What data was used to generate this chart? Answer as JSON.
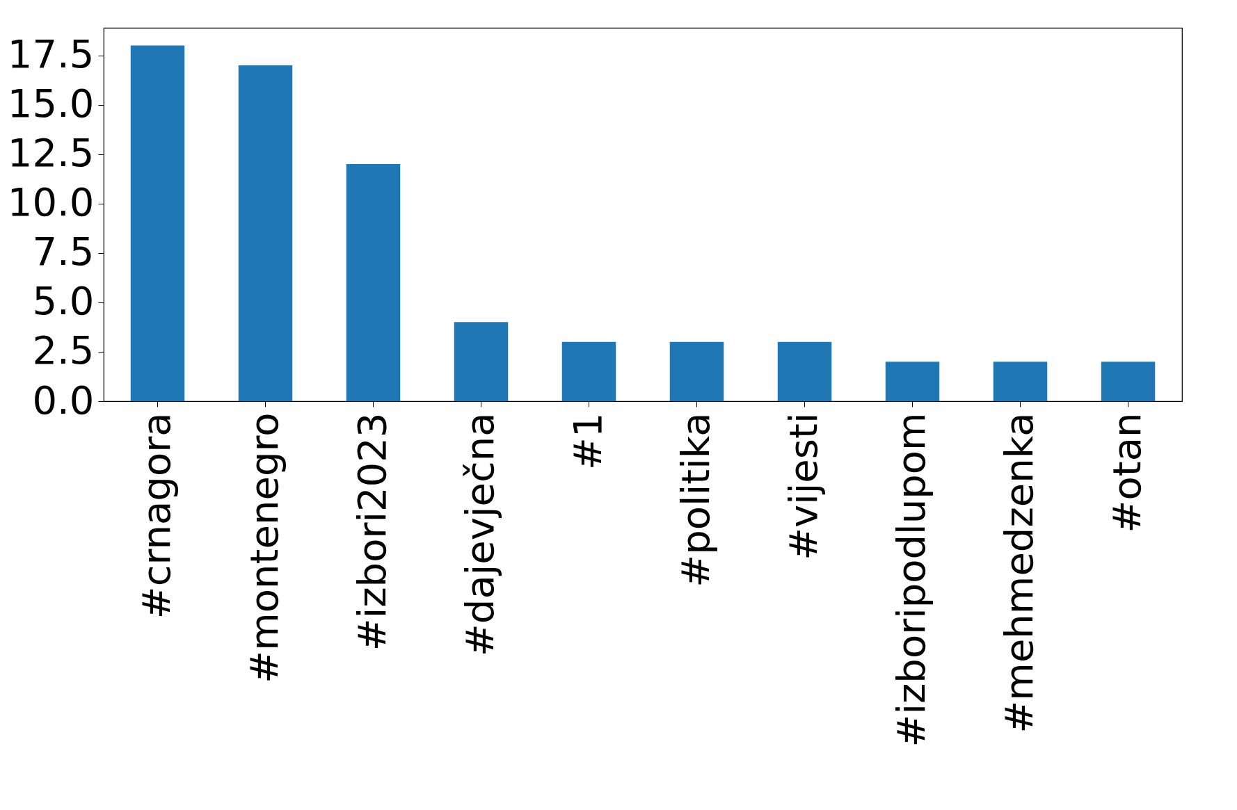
{
  "chart_data": {
    "type": "bar",
    "categories": [
      "#crnagora",
      "#montenegro",
      "#izbori2023",
      "#dajevječna",
      "#1",
      "#politika",
      "#vijesti",
      "#izboripodlupom",
      "#mehmedzenka",
      "#otan"
    ],
    "values": [
      18,
      17,
      12,
      4,
      3,
      3,
      3,
      2,
      2,
      2
    ],
    "color": "#1f77b4",
    "ylim": [
      0,
      18.9
    ],
    "yticks": [
      {
        "value": 0,
        "label": "0.0"
      },
      2.5,
      {
        "value": 5,
        "label": "5.0"
      },
      7.5,
      {
        "value": 10,
        "label": "10.0"
      },
      12.5,
      {
        "value": 15,
        "label": "15.0"
      },
      17.5
    ],
    "grid": false
  }
}
